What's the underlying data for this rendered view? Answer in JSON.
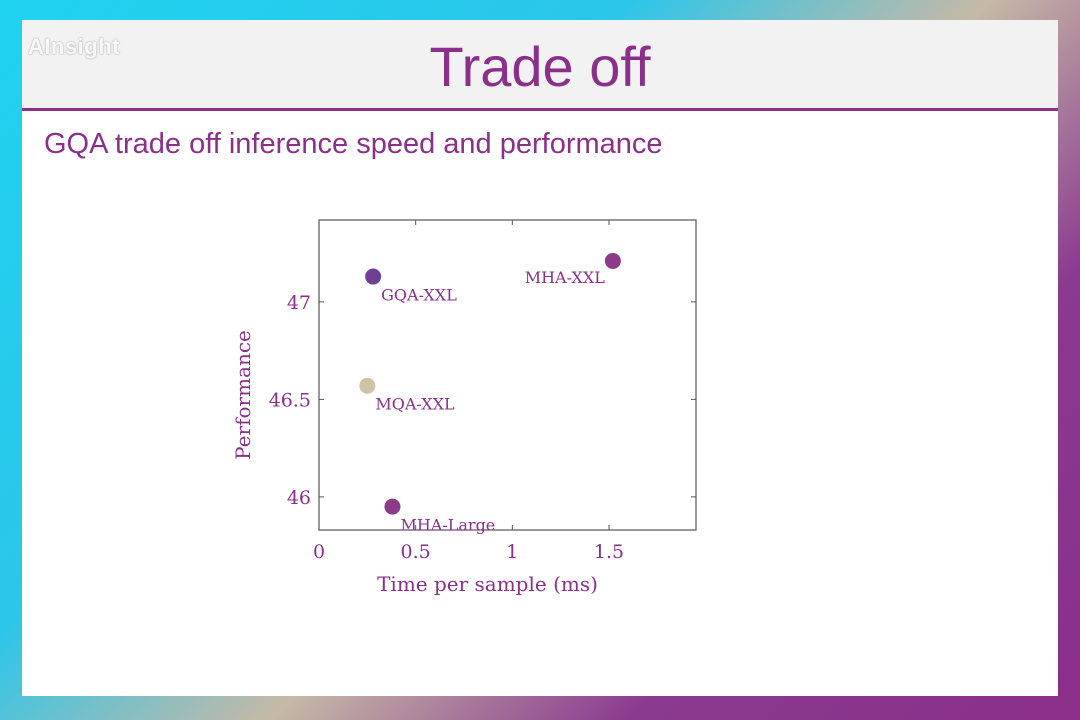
{
  "slide": {
    "watermark": "AInsight",
    "title": "Trade off",
    "subtitle": "GQA trade off inference speed and performance"
  },
  "colors": {
    "accent": "#8a2f8a",
    "frame": "#555555"
  },
  "chart_data": {
    "type": "scatter",
    "title": "",
    "xlabel": "Time per sample (ms)",
    "ylabel": "Performance",
    "xlim": [
      0,
      1.95
    ],
    "ylim": [
      45.83,
      47.42
    ],
    "xticks": [
      0,
      0.5,
      1,
      1.5
    ],
    "xtick_labels": [
      "0",
      "0.5",
      "1",
      "1.5"
    ],
    "yticks": [
      46,
      46.5,
      47
    ],
    "ytick_labels": [
      "46",
      "46.5",
      "47"
    ],
    "grid": false,
    "points": [
      {
        "label": "GQA-XXL",
        "x": 0.28,
        "y": 47.13,
        "color": "#6f3f96",
        "label_side": "below-right"
      },
      {
        "label": "MHA-XXL",
        "x": 1.52,
        "y": 47.21,
        "color": "#8d3a89",
        "label_side": "left"
      },
      {
        "label": "MQA-XXL",
        "x": 0.25,
        "y": 46.57,
        "color": "#cfc3a6",
        "label_side": "below-right"
      },
      {
        "label": "MHA-Large",
        "x": 0.38,
        "y": 45.95,
        "color": "#8d3a89",
        "label_side": "below-right"
      }
    ]
  }
}
